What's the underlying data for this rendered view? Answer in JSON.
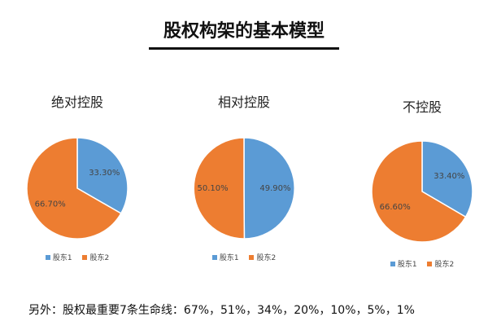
{
  "main_title": "股权构架的基本模型",
  "footer_note": "另外：股权最重要7条生命线：67%，51%，34%，20%，10%，5%，1%",
  "colors": {
    "shareholder1": "#5B9BD5",
    "shareholder2": "#ED7D31"
  },
  "chart_data": [
    {
      "type": "pie",
      "title": "绝对控股",
      "legend_position": "bottom",
      "slices": [
        {
          "name": "股东1",
          "value": 33.3,
          "label": "33.30%"
        },
        {
          "name": "股东2",
          "value": 66.7,
          "label": "66.70%"
        }
      ]
    },
    {
      "type": "pie",
      "title": "相对控股",
      "legend_position": "bottom",
      "slices": [
        {
          "name": "股东1",
          "value": 49.9,
          "label": "49.90%"
        },
        {
          "name": "股东2",
          "value": 50.1,
          "label": "50.10%"
        }
      ]
    },
    {
      "type": "pie",
      "title": "不控股",
      "legend_position": "bottom",
      "slices": [
        {
          "name": "股东1",
          "value": 33.4,
          "label": "33.40%"
        },
        {
          "name": "股东2",
          "value": 66.6,
          "label": "66.60%"
        }
      ]
    }
  ]
}
